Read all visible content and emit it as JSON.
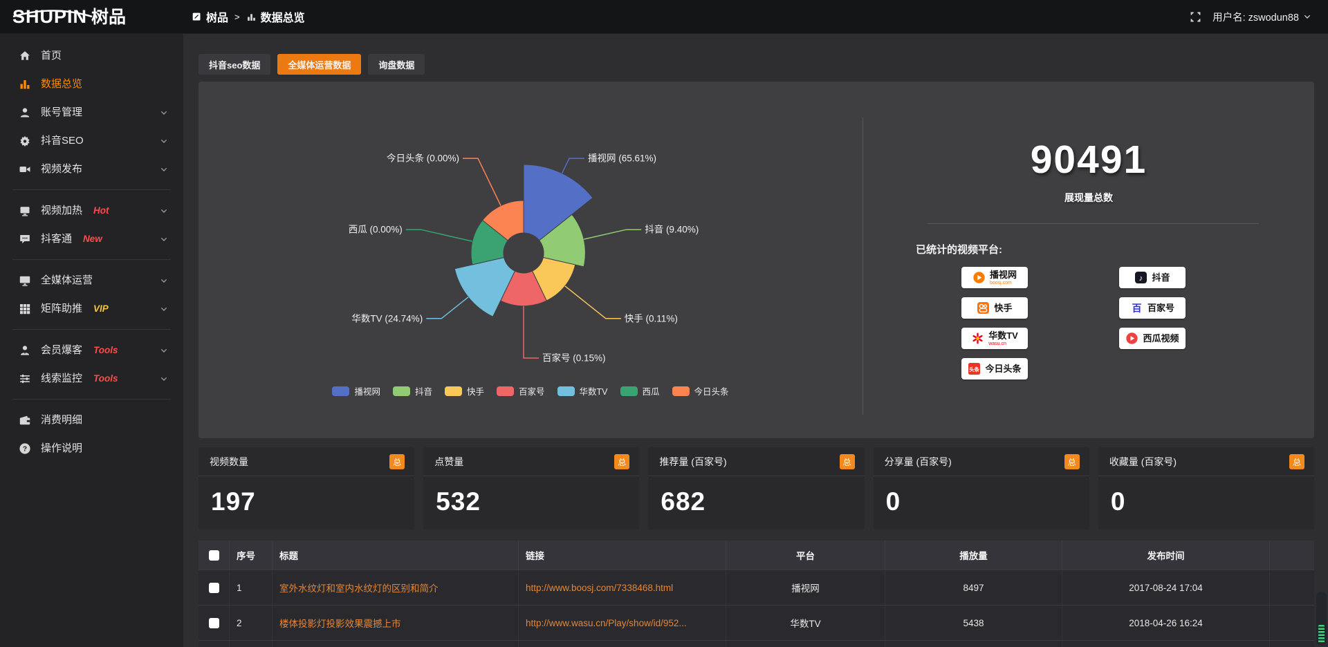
{
  "colors": {
    "accent": "#ed7a11",
    "total_badge": "#f28a1e",
    "link": "#e0873a",
    "hot_badge": "#ff4b4b",
    "vip_badge": "#f6c33d",
    "sidebar_active": "#ff8a00"
  },
  "topbar": {
    "logo_en": "SHUPIN",
    "logo_cn": "树品",
    "breadcrumb_root": "树品",
    "breadcrumb_sep": ">",
    "breadcrumb_current": "数据总览",
    "username": "用户名: zswodun88"
  },
  "sidebar": {
    "groups": [
      [
        {
          "key": "home",
          "label": "首页",
          "icon": "home"
        },
        {
          "key": "data-overview",
          "label": "数据总览",
          "icon": "chart",
          "active": true
        },
        {
          "key": "account-management",
          "label": "账号管理",
          "icon": "user",
          "expandable": true
        },
        {
          "key": "douyin-seo",
          "label": "抖音SEO",
          "icon": "gear",
          "expandable": true
        },
        {
          "key": "video-publish",
          "label": "视频发布",
          "icon": "publish",
          "expandable": true
        }
      ],
      [
        {
          "key": "video-heat",
          "label": "视频加热",
          "icon": "screen",
          "badge": "Hot",
          "badge_color": "#ff4b4b",
          "expandable": true
        },
        {
          "key": "douketong",
          "label": "抖客通",
          "icon": "chat",
          "badge": "New",
          "badge_color": "#ff4b4b",
          "expandable": true
        }
      ],
      [
        {
          "key": "media-operation",
          "label": "全媒体运营",
          "icon": "monitor",
          "expandable": true
        },
        {
          "key": "matrix-boost",
          "label": "矩阵助推",
          "icon": "grid",
          "badge": "VIP",
          "badge_color": "#f6c33d",
          "expandable": true
        }
      ],
      [
        {
          "key": "member-baoke",
          "label": "会员爆客",
          "icon": "person",
          "badge": "Tools",
          "badge_color": "#ff4b4b",
          "expandable": true
        },
        {
          "key": "clue-monitor",
          "label": "线索监控",
          "icon": "sliders",
          "badge": "Tools",
          "badge_color": "#ff4b4b",
          "expandable": true
        }
      ],
      [
        {
          "key": "consume-detail",
          "label": "消费明细",
          "icon": "wallet"
        },
        {
          "key": "operation-guide",
          "label": "操作说明",
          "icon": "question"
        }
      ]
    ]
  },
  "tabs": [
    {
      "key": "douyin-seo-data",
      "label": "抖音seo数据",
      "active": false
    },
    {
      "key": "media-operation-data",
      "label": "全媒体运营数据",
      "active": true
    },
    {
      "key": "inquiry-data",
      "label": "询盘数据",
      "active": false
    }
  ],
  "chart_data": {
    "type": "pie",
    "subtype": "nightingale-rose-donut",
    "legend_position": "bottom",
    "items": [
      {
        "name": "播视网",
        "pct": 65.61,
        "label": "播视网 (65.61%)",
        "color": "#5470c6"
      },
      {
        "name": "抖音",
        "pct": 9.4,
        "label": "抖音 (9.40%)",
        "color": "#91cc75"
      },
      {
        "name": "快手",
        "pct": 0.11,
        "label": "快手 (0.11%)",
        "color": "#fac858"
      },
      {
        "name": "百家号",
        "pct": 0.15,
        "label": "百家号 (0.15%)",
        "color": "#ee6666"
      },
      {
        "name": "华数TV",
        "pct": 24.74,
        "label": "华数TV (24.74%)",
        "color": "#73c0de"
      },
      {
        "name": "西瓜",
        "pct": 0.0,
        "label": "西瓜 (0.00%)",
        "color": "#3ba272"
      },
      {
        "name": "今日头条",
        "pct": 0.0,
        "label": "今日头条 (0.00%)",
        "color": "#fc8452"
      }
    ]
  },
  "summary": {
    "total_value": "90491",
    "total_label": "展现量总数",
    "platforms_label": "已统计的视频平台:",
    "platform_columns": [
      [
        {
          "key": "boosj",
          "name": "播视网",
          "sub": "boosj.com",
          "sub_color": "#ff7a00"
        },
        {
          "key": "kuaishou",
          "name": "快手"
        },
        {
          "key": "wasu",
          "name": "华数TV",
          "sub": "wasu.cn",
          "sub_color": "#e60012"
        },
        {
          "key": "toutiao",
          "name": "今日头条"
        }
      ],
      [
        {
          "key": "douyin",
          "name": "抖音"
        },
        {
          "key": "baijiahao",
          "name": "百家号"
        },
        {
          "key": "xigua",
          "name": "西瓜视频"
        }
      ]
    ]
  },
  "stat_cards": [
    {
      "title": "视频数量",
      "badge": "总",
      "value": "197"
    },
    {
      "title": "点赞量",
      "badge": "总",
      "value": "532"
    },
    {
      "title": "推荐量 (百家号)",
      "badge": "总",
      "value": "682"
    },
    {
      "title": "分享量 (百家号)",
      "badge": "总",
      "value": "0"
    },
    {
      "title": "收藏量 (百家号)",
      "badge": "总",
      "value": "0"
    }
  ],
  "table": {
    "headers": [
      "序号",
      "标题",
      "链接",
      "平台",
      "播放量",
      "发布时间"
    ],
    "rows": [
      {
        "no": "1",
        "title": "室外水纹灯和室内水纹灯的区别和简介",
        "link": "http://www.boosj.com/7338468.html",
        "platform": "播视网",
        "views": "8497",
        "time": "2017-08-24 17:04"
      },
      {
        "no": "2",
        "title": "楼体投影灯投影效果震撼上市",
        "link": "http://www.wasu.cn/Play/show/id/952...",
        "platform": "华数TV",
        "views": "5438",
        "time": "2018-04-26 16:24"
      }
    ]
  }
}
